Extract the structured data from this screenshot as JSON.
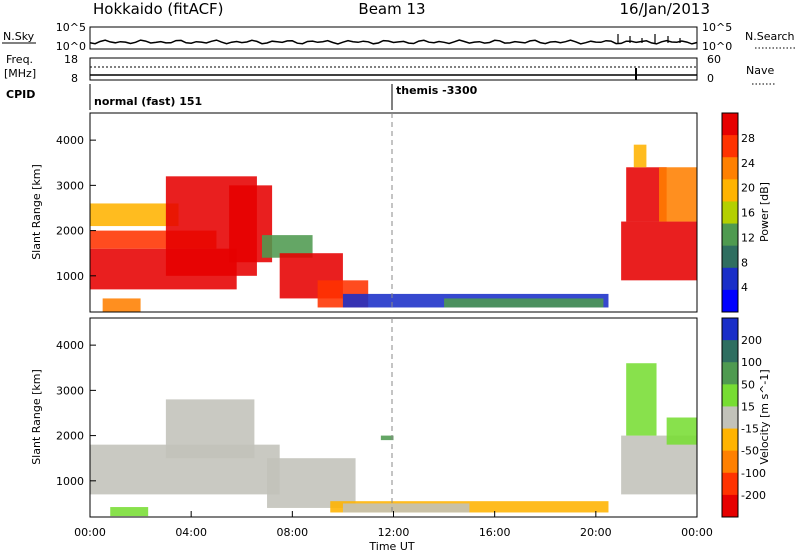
{
  "header": {
    "station": "Hokkaido (fitACF)",
    "beam": "Beam 13",
    "date": "16/Jan/2013"
  },
  "status_panels": {
    "nsky_label": "N.Sky",
    "nsky_ticks": [
      "10^5",
      "10^0"
    ],
    "nsearch_label": "N.Search",
    "nsearch_ticks": [
      "10^5",
      "10^0"
    ],
    "freq_label": "Freq.",
    "freq_unit": "[MHz]",
    "freq_ticks": [
      "18",
      "8"
    ],
    "nave_label": "Nave",
    "nave_ticks": [
      "60",
      "0"
    ],
    "cpid_label": "CPID",
    "cpid_segments": [
      {
        "label": "normal (fast) 151",
        "start_hour": 0
      },
      {
        "label": "themis -3300",
        "start_hour": 12
      }
    ]
  },
  "chart_data": [
    {
      "type": "heatmap",
      "name": "power",
      "ylabel": "Slant Range [km]",
      "xlabel": "Time UT",
      "xlim": [
        0,
        24
      ],
      "ylim": [
        200,
        4600
      ],
      "yticks": [
        1000,
        2000,
        3000,
        4000
      ],
      "colorbar": {
        "label": "Power [dB]",
        "ticks": [
          "28",
          "24",
          "20",
          "16",
          "12",
          "8",
          "4"
        ],
        "colors": [
          "#e60000",
          "#ff3300",
          "#ff8000",
          "#ffb300",
          "#b4d000",
          "#4f9a50",
          "#2f6e60",
          "#1a2fc8",
          "#0000ff"
        ]
      },
      "regions": [
        {
          "t": [
            0.0,
            5.8
          ],
          "r": [
            700,
            1600
          ],
          "color": "#e60000"
        },
        {
          "t": [
            0.0,
            5.0
          ],
          "r": [
            1600,
            2000
          ],
          "color": "#ff3300"
        },
        {
          "t": [
            0.0,
            3.5
          ],
          "r": [
            2100,
            2600
          ],
          "color": "#ffb300"
        },
        {
          "t": [
            3.0,
            6.6
          ],
          "r": [
            1000,
            3200
          ],
          "color": "#e60000"
        },
        {
          "t": [
            5.5,
            7.2
          ],
          "r": [
            1300,
            3000
          ],
          "color": "#e60000"
        },
        {
          "t": [
            6.8,
            8.8
          ],
          "r": [
            1400,
            1900
          ],
          "color": "#4f9a50"
        },
        {
          "t": [
            7.5,
            10.0
          ],
          "r": [
            500,
            1500
          ],
          "color": "#e60000"
        },
        {
          "t": [
            9.0,
            11.0
          ],
          "r": [
            300,
            900
          ],
          "color": "#ff3300"
        },
        {
          "t": [
            10.0,
            20.5
          ],
          "r": [
            300,
            600
          ],
          "color": "#1a2fc8"
        },
        {
          "t": [
            14.0,
            20.3
          ],
          "r": [
            300,
            500
          ],
          "color": "#4f9a50"
        },
        {
          "t": [
            0.5,
            2.0
          ],
          "r": [
            200,
            500
          ],
          "color": "#ff8000"
        },
        {
          "t": [
            21.0,
            24.0
          ],
          "r": [
            900,
            2200
          ],
          "color": "#e60000"
        },
        {
          "t": [
            21.2,
            22.8
          ],
          "r": [
            2200,
            3400
          ],
          "color": "#e60000"
        },
        {
          "t": [
            22.5,
            24.0
          ],
          "r": [
            2200,
            3400
          ],
          "color": "#ff8000"
        },
        {
          "t": [
            21.5,
            22.0
          ],
          "r": [
            3400,
            3900
          ],
          "color": "#ffb300"
        }
      ]
    },
    {
      "type": "heatmap",
      "name": "velocity",
      "ylabel": "Slant Range [km]",
      "xlabel": "Time UT",
      "xlim": [
        0,
        24
      ],
      "ylim": [
        200,
        4600
      ],
      "yticks": [
        1000,
        2000,
        3000,
        4000
      ],
      "colorbar": {
        "label": "Velocity [m s^-1]",
        "ticks": [
          "200",
          "100",
          "50",
          "15",
          "-15",
          "-50",
          "-100",
          "-200"
        ],
        "colors": [
          "#1a2fc8",
          "#2f6e60",
          "#4f9a50",
          "#77dd33",
          "#c2c2ba",
          "#ffb300",
          "#ff8000",
          "#ff3300",
          "#e60000"
        ]
      },
      "regions": [
        {
          "t": [
            0.0,
            7.5
          ],
          "r": [
            700,
            1800
          ],
          "color": "#c2c2ba"
        },
        {
          "t": [
            3.0,
            6.5
          ],
          "r": [
            1500,
            2800
          ],
          "color": "#c2c2ba"
        },
        {
          "t": [
            7.0,
            10.5
          ],
          "r": [
            400,
            1500
          ],
          "color": "#c2c2ba"
        },
        {
          "t": [
            9.5,
            20.5
          ],
          "r": [
            300,
            550
          ],
          "color": "#ffb300"
        },
        {
          "t": [
            10.0,
            15.0
          ],
          "r": [
            300,
            500
          ],
          "color": "#c2c2ba"
        },
        {
          "t": [
            0.8,
            2.3
          ],
          "r": [
            220,
            420
          ],
          "color": "#77dd33"
        },
        {
          "t": [
            11.5,
            12.0
          ],
          "r": [
            1900,
            2000
          ],
          "color": "#4f9a50"
        },
        {
          "t": [
            21.0,
            24.0
          ],
          "r": [
            700,
            2000
          ],
          "color": "#c2c2ba"
        },
        {
          "t": [
            21.2,
            22.4
          ],
          "r": [
            2000,
            3600
          ],
          "color": "#77dd33"
        },
        {
          "t": [
            22.8,
            24.0
          ],
          "r": [
            1800,
            2400
          ],
          "color": "#77dd33"
        }
      ],
      "xticks": [
        "00:00",
        "04:00",
        "08:00",
        "12:00",
        "16:00",
        "20:00",
        "00:00"
      ]
    }
  ]
}
